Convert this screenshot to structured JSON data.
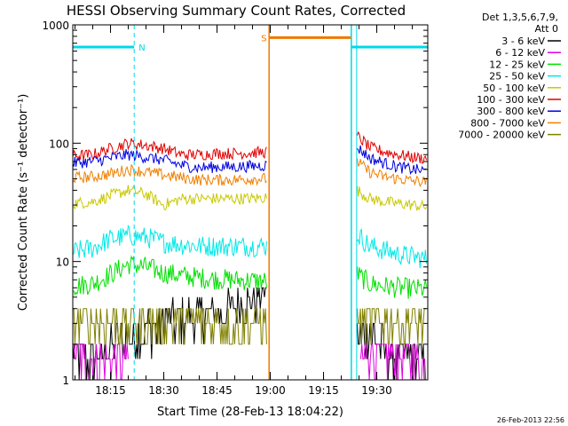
{
  "chart_data": {
    "type": "line",
    "title": "HESSI Observing Summary Count Rates, Corrected",
    "xlabel": "Start Time (28-Feb-13 18:04:22)",
    "ylabel": "Corrected Count Rate (s⁻¹ detector⁻¹)",
    "y_scale": "log",
    "ylim": [
      1,
      1000
    ],
    "xlim": [
      "18:04:22",
      "19:44:22"
    ],
    "x_tick_labels": [
      "18:15",
      "18:30",
      "18:45",
      "19:00",
      "19:15",
      "19:30"
    ],
    "x_ticks": [
      "18:15:00",
      "18:30:00",
      "18:45:00",
      "19:00:00",
      "19:15:00",
      "19:30:00"
    ],
    "y_tick_labels": [
      "1",
      "10",
      "100",
      "1000"
    ],
    "y_ticks": [
      1,
      10,
      100,
      1000
    ],
    "grid": false,
    "legend": {
      "placement": "right-outside",
      "title": [
        "Det 1,3,5,6,7,9,",
        "Att 0"
      ]
    },
    "markers": [
      {
        "label": "N",
        "color": "#00d8e8",
        "start": "18:04:22",
        "end": "18:21:40",
        "level": 650
      },
      {
        "label": "S",
        "color": "#f07800",
        "start": "18:59:40",
        "end": "19:22:50",
        "level": 780
      },
      {
        "label": "",
        "color": "#00d8e8",
        "start": "19:22:50",
        "end": "19:44:22",
        "level": 650
      }
    ],
    "gaps": [
      [
        "18:59:40",
        "19:24:20"
      ]
    ],
    "series": [
      {
        "name": "3 - 6 keV",
        "color": "#000000",
        "segments": [
          {
            "x": [
              "18:04:22",
              "18:10:00",
              "18:15:00",
              "18:20:00",
              "18:25:00",
              "18:30:00",
              "18:35:00",
              "18:40:00",
              "18:45:00",
              "18:50:00",
              "18:55:00",
              "18:59:00"
            ],
            "y": [
              1.5,
              1.5,
              1.9,
              2.2,
              2.6,
              3.0,
              3.2,
              3.4,
              3.5,
              4.0,
              4.5,
              6.5
            ]
          },
          {
            "x": [
              "19:24:30",
              "19:28:00",
              "19:32:00",
              "19:36:00",
              "19:40:00",
              "19:44:00"
            ],
            "y": [
              2.2,
              2.5,
              1.8,
              1.6,
              1.5,
              1.4
            ]
          }
        ]
      },
      {
        "name": "6 - 12 keV",
        "color": "#e000e0",
        "segments": [
          {
            "x": [
              "18:04:22",
              "18:08:00",
              "18:12:00",
              "18:16:00",
              "18:20:00"
            ],
            "y": [
              1.5,
              1.5,
              1.5,
              1.4,
              1.3
            ]
          },
          {
            "x": [
              "19:25:30",
              "19:28:00",
              "19:32:00",
              "19:36:00",
              "19:40:00",
              "19:44:00"
            ],
            "y": [
              1.6,
              1.7,
              1.6,
              1.5,
              1.5,
              1.4
            ]
          }
        ]
      },
      {
        "name": "12 - 25 keV",
        "color": "#00e000",
        "segments": [
          {
            "x": [
              "18:04:22",
              "18:10:00",
              "18:15:00",
              "18:20:00",
              "18:25:00",
              "18:30:00",
              "18:35:00",
              "18:40:00",
              "18:45:00",
              "18:50:00",
              "18:55:00",
              "18:59:00"
            ],
            "y": [
              6.2,
              6.5,
              7.8,
              9.5,
              9.0,
              8.0,
              7.6,
              7.3,
              7.1,
              7.0,
              6.9,
              6.8
            ]
          },
          {
            "x": [
              "19:24:30",
              "19:28:00",
              "19:32:00",
              "19:36:00",
              "19:40:00",
              "19:44:00"
            ],
            "y": [
              7.8,
              6.5,
              6.2,
              6.0,
              5.9,
              5.8
            ]
          }
        ]
      },
      {
        "name": "25 - 50 keV",
        "color": "#00e8e8",
        "segments": [
          {
            "x": [
              "18:04:22",
              "18:10:00",
              "18:15:00",
              "18:20:00",
              "18:25:00",
              "18:30:00",
              "18:35:00",
              "18:40:00",
              "18:45:00",
              "18:50:00",
              "18:55:00",
              "18:59:00"
            ],
            "y": [
              12.0,
              13.0,
              15.5,
              16.5,
              16.0,
              14.5,
              14.0,
              13.5,
              13.5,
              13.5,
              13.5,
              13.5
            ]
          },
          {
            "x": [
              "19:24:30",
              "19:28:00",
              "19:32:00",
              "19:36:00",
              "19:40:00",
              "19:44:00"
            ],
            "y": [
              17.0,
              13.5,
              12.5,
              11.5,
              11.0,
              10.5
            ]
          }
        ]
      },
      {
        "name": "50 - 100 keV",
        "color": "#c8c800",
        "segments": [
          {
            "x": [
              "18:04:22",
              "18:10:00",
              "18:15:00",
              "18:20:00",
              "18:25:00",
              "18:30:00",
              "18:35:00",
              "18:40:00",
              "18:45:00",
              "18:50:00",
              "18:55:00",
              "18:59:00"
            ],
            "y": [
              31.0,
              32.0,
              36.0,
              40.0,
              37.0,
              30.0,
              34.0,
              34.0,
              34.0,
              34.0,
              34.0,
              35.0
            ]
          },
          {
            "x": [
              "19:24:30",
              "19:28:00",
              "19:32:00",
              "19:36:00",
              "19:40:00",
              "19:44:00"
            ],
            "y": [
              40.0,
              34.0,
              32.0,
              31.0,
              30.0,
              29.0
            ]
          }
        ]
      },
      {
        "name": "100 - 300 keV",
        "color": "#e00000",
        "segments": [
          {
            "x": [
              "18:04:22",
              "18:10:00",
              "18:15:00",
              "18:20:00",
              "18:25:00",
              "18:30:00",
              "18:35:00",
              "18:40:00",
              "18:45:00",
              "18:50:00",
              "18:55:00",
              "18:59:00"
            ],
            "y": [
              78.0,
              80.0,
              90.0,
              100.0,
              96.0,
              90.0,
              80.0,
              80.0,
              82.0,
              82.0,
              83.0,
              84.0
            ]
          },
          {
            "x": [
              "19:24:30",
              "19:26:00",
              "19:28:00",
              "19:32:00",
              "19:36:00",
              "19:40:00",
              "19:44:00"
            ],
            "y": [
              115.0,
              105.0,
              92.0,
              85.0,
              80.0,
              76.0,
              74.0
            ]
          }
        ]
      },
      {
        "name": "300 - 800 keV",
        "color": "#0000e0",
        "segments": [
          {
            "x": [
              "18:04:22",
              "18:10:00",
              "18:15:00",
              "18:20:00",
              "18:25:00",
              "18:30:00",
              "18:35:00",
              "18:40:00",
              "18:45:00",
              "18:50:00",
              "18:55:00",
              "18:59:00"
            ],
            "y": [
              68.0,
              70.0,
              75.0,
              80.0,
              76.0,
              72.0,
              65.0,
              62.0,
              63.0,
              63.0,
              64.0,
              65.0
            ]
          },
          {
            "x": [
              "19:24:30",
              "19:26:00",
              "19:28:00",
              "19:32:00",
              "19:36:00",
              "19:40:00",
              "19:44:00"
            ],
            "y": [
              92.0,
              85.0,
              75.0,
              68.0,
              63.0,
              60.0,
              58.0
            ]
          }
        ]
      },
      {
        "name": "800 - 7000 keV",
        "color": "#f08000",
        "segments": [
          {
            "x": [
              "18:04:22",
              "18:10:00",
              "18:15:00",
              "18:20:00",
              "18:25:00",
              "18:30:00",
              "18:35:00",
              "18:40:00",
              "18:45:00",
              "18:50:00",
              "18:55:00",
              "18:59:00"
            ],
            "y": [
              51.0,
              52.0,
              55.0,
              60.0,
              57.0,
              54.0,
              51.0,
              49.0,
              49.0,
              49.0,
              50.0,
              50.0
            ]
          },
          {
            "x": [
              "19:24:30",
              "19:26:00",
              "19:28:00",
              "19:32:00",
              "19:36:00",
              "19:40:00",
              "19:44:00"
            ],
            "y": [
              70.0,
              64.0,
              57.0,
              52.0,
              50.0,
              48.0,
              47.0
            ]
          }
        ]
      },
      {
        "name": "7000 - 20000 keV",
        "color": "#808000",
        "segments": [
          {
            "x": [
              "18:04:22",
              "18:10:00",
              "18:15:00",
              "18:20:00",
              "18:25:00",
              "18:30:00",
              "18:35:00",
              "18:40:00",
              "18:45:00",
              "18:50:00",
              "18:55:00",
              "18:59:00"
            ],
            "y": [
              3.0,
              3.0,
              3.0,
              3.0,
              3.0,
              3.0,
              3.0,
              3.0,
              3.0,
              3.0,
              3.0,
              3.0
            ]
          },
          {
            "x": [
              "19:24:30",
              "19:28:00",
              "19:32:00",
              "19:36:00",
              "19:40:00",
              "19:44:00"
            ],
            "y": [
              3.0,
              3.0,
              3.0,
              3.0,
              3.0,
              3.0
            ]
          }
        ]
      }
    ]
  },
  "footer": {
    "timestamp": "26-Feb-2013 22:56"
  }
}
